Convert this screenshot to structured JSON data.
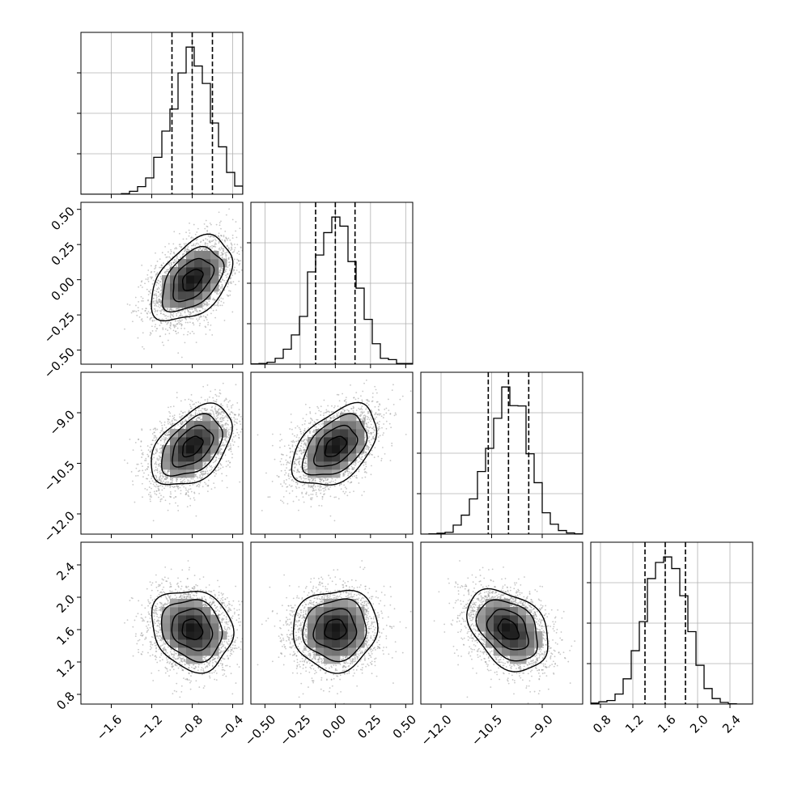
{
  "chart_data": {
    "type": "corner",
    "title": "",
    "parameters": [
      {
        "label": "",
        "range": [
          -1.9,
          -0.3
        ],
        "ticks": [
          -1.6,
          -1.2,
          -0.8,
          -0.4
        ],
        "tick_labels": [
          "−1.6",
          "−1.2",
          "−0.8",
          "−0.4"
        ]
      },
      {
        "label": "",
        "range": [
          -0.6,
          0.55
        ],
        "ticks": [
          -0.5,
          -0.25,
          0.0,
          0.25,
          0.5
        ],
        "tick_labels": [
          "−0.50",
          "−0.25",
          "0.00",
          "0.25",
          "0.50"
        ]
      },
      {
        "label": "",
        "range": [
          -12.6,
          -7.8
        ],
        "ticks": [
          -12.0,
          -10.5,
          -9.0
        ],
        "tick_labels": [
          "−12.0",
          "−10.5",
          "−9.0"
        ]
      },
      {
        "label": "",
        "range": [
          0.68,
          2.68
        ],
        "ticks": [
          0.8,
          1.2,
          1.6,
          2.0,
          2.4
        ],
        "tick_labels": [
          "0.8",
          "1.2",
          "1.6",
          "2.0",
          "2.4"
        ]
      }
    ],
    "means": [
      -0.8,
      0.0,
      -10.0,
      1.6
    ],
    "sigmas": [
      0.2,
      0.15,
      0.6,
      0.25
    ],
    "correlations": [
      [
        1.0,
        0.45,
        0.45,
        -0.15
      ],
      [
        0.45,
        1.0,
        0.45,
        0.05
      ],
      [
        0.45,
        0.45,
        1.0,
        -0.35
      ],
      [
        -0.15,
        0.05,
        -0.35,
        1.0
      ]
    ],
    "quantiles": [
      [
        -1.0,
        -0.8,
        -0.6
      ],
      [
        -0.14,
        0.0,
        0.14
      ],
      [
        -10.6,
        -10.0,
        -9.4
      ],
      [
        1.35,
        1.6,
        1.85
      ]
    ],
    "histogram_peaks": [
      [
        -1.9,
        -1.8,
        -1.7,
        -1.6,
        -1.5,
        -1.4,
        -1.3,
        -1.2,
        -1.1,
        -1.0,
        -0.9,
        -0.8,
        -0.7,
        -0.6,
        -0.5,
        -0.4,
        -0.3
      ]
    ],
    "sample_count": 3000,
    "grid": true,
    "legend": "none"
  }
}
